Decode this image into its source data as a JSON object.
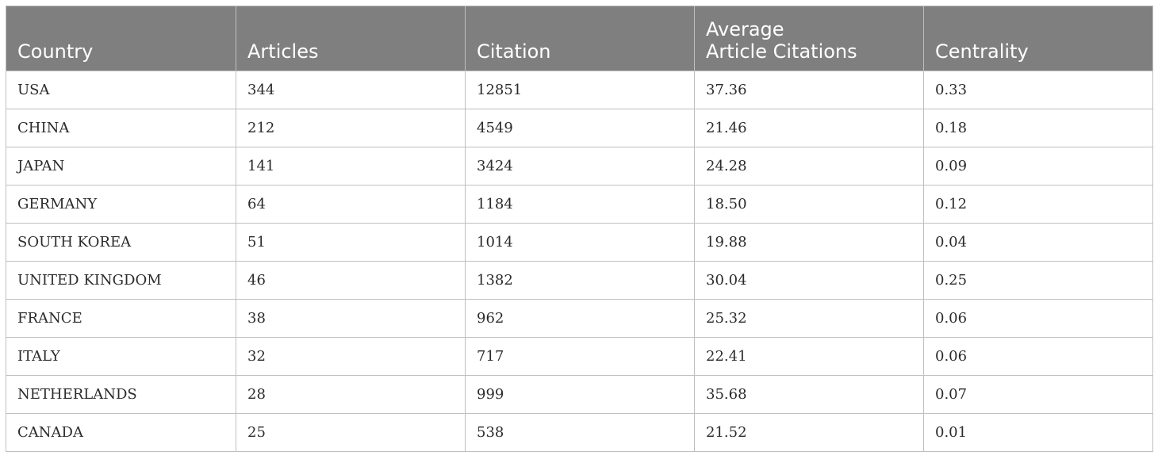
{
  "table": {
    "headers": [
      [
        "Country"
      ],
      [
        "Articles"
      ],
      [
        "Citation"
      ],
      [
        "Average",
        "Article Citations"
      ],
      [
        "Centrality"
      ]
    ],
    "rows": [
      [
        "USA",
        "344",
        "12851",
        "37.36",
        "0.33"
      ],
      [
        "CHINA",
        "212",
        "4549",
        "21.46",
        "0.18"
      ],
      [
        "JAPAN",
        "141",
        "3424",
        "24.28",
        "0.09"
      ],
      [
        "GERMANY",
        "64",
        "1184",
        "18.50",
        "0.12"
      ],
      [
        "SOUTH KOREA",
        "51",
        "1014",
        "19.88",
        "0.04"
      ],
      [
        "UNITED KINGDOM",
        "46",
        "1382",
        "30.04",
        "0.25"
      ],
      [
        "FRANCE",
        "38",
        "962",
        "25.32",
        "0.06"
      ],
      [
        "ITALY",
        "32",
        "717",
        "22.41",
        "0.06"
      ],
      [
        "NETHERLANDS",
        "28",
        "999",
        "35.68",
        "0.07"
      ],
      [
        "CANADA",
        "25",
        "538",
        "21.52",
        "0.01"
      ]
    ]
  },
  "colors": {
    "header_background": "#7f7f7f",
    "header_text": "#ffffff",
    "grid_line": "#bfbfbf",
    "body_text": "#2b2b2b"
  }
}
